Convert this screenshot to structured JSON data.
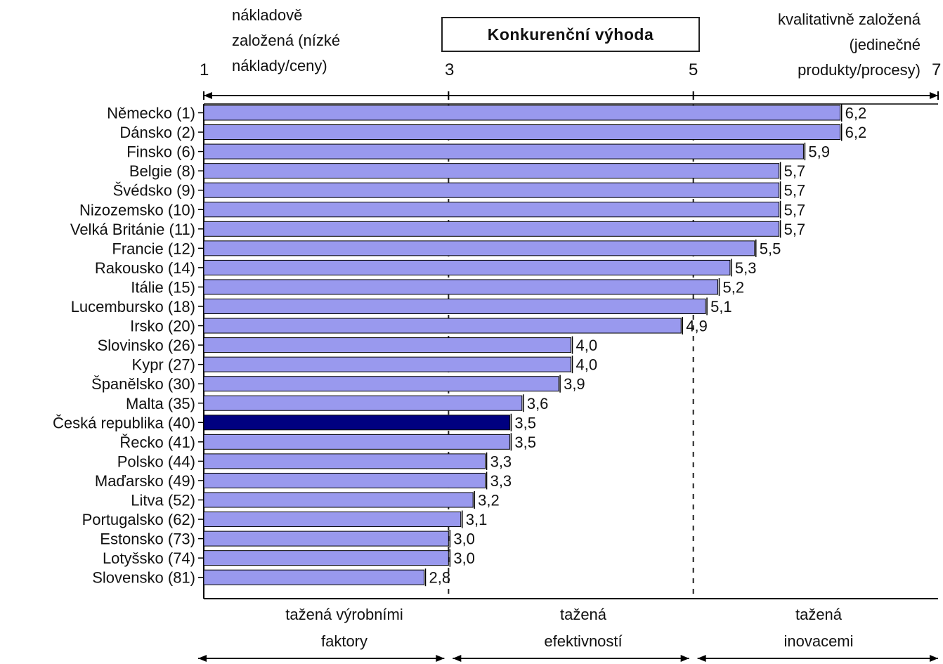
{
  "title": "Konkurenční výhoda",
  "header_left": [
    "nákladově",
    "založená (nízké",
    "náklady/ceny)"
  ],
  "header_right": [
    "kvalitativně založená",
    "(jedinečné",
    "produkty/procesy)"
  ],
  "scale_labels": [
    "1",
    "3",
    "5",
    "7"
  ],
  "sections": [
    [
      "tažená výrobními",
      "faktory"
    ],
    [
      "tažená",
      "efektivností"
    ],
    [
      "tažená",
      "inovacemi"
    ]
  ],
  "colors": {
    "bar": "#9999ee",
    "highlight": "#000080",
    "outline": "#000000"
  },
  "chart_data": {
    "type": "bar",
    "orientation": "horizontal",
    "xlim": [
      1,
      7
    ],
    "ticks": [
      1,
      3,
      5,
      7
    ],
    "reference_lines": [
      3,
      5
    ],
    "highlight_category": "Česká republika (40)",
    "categories": [
      "Německo (1)",
      "Dánsko (2)",
      "Finsko (6)",
      "Belgie (8)",
      "Švédsko (9)",
      "Nizozemsko (10)",
      "Velká Británie (11)",
      "Francie (12)",
      "Rakousko (14)",
      "Itálie (15)",
      "Lucembursko (18)",
      "Irsko (20)",
      "Slovinsko (26)",
      "Kypr (27)",
      "Španělsko (30)",
      "Malta (35)",
      "Česká republika (40)",
      "Řecko (41)",
      "Polsko (44)",
      "Maďarsko (49)",
      "Litva (52)",
      "Portugalsko (62)",
      "Estonsko (73)",
      "Lotyšsko (74)",
      "Slovensko (81)"
    ],
    "values": [
      6.2,
      6.2,
      5.9,
      5.7,
      5.7,
      5.7,
      5.7,
      5.5,
      5.3,
      5.2,
      5.1,
      4.9,
      4.0,
      4.0,
      3.9,
      3.6,
      3.5,
      3.5,
      3.3,
      3.3,
      3.2,
      3.1,
      3.0,
      3.0,
      2.8
    ],
    "value_labels": [
      "6,2",
      "6,2",
      "5,9",
      "5,7",
      "5,7",
      "5,7",
      "5,7",
      "5,5",
      "5,3",
      "5,2",
      "5,1",
      "4,9",
      "4,0",
      "4,0",
      "3,9",
      "3,6",
      "3,5",
      "3,5",
      "3,3",
      "3,3",
      "3,2",
      "3,1",
      "3,0",
      "3,0",
      "2,8"
    ]
  }
}
